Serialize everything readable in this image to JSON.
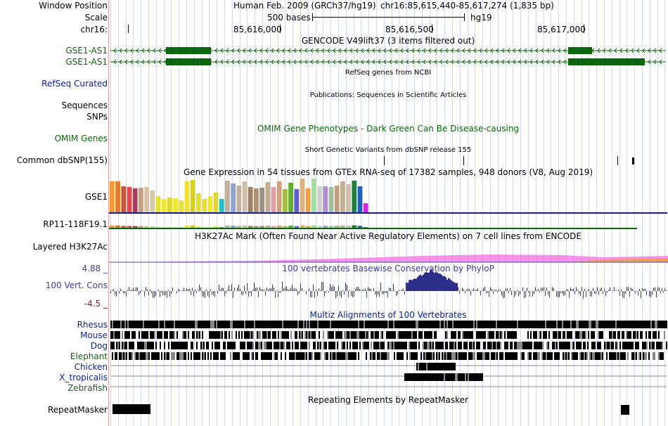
{
  "header": {
    "window_position_label": "Window Position",
    "assembly": "Human Feb. 2009 (GRCh37/hg19)",
    "position": "chr16:85,615,440-85,617,274 (1,835 bp)",
    "scale_label": "Scale",
    "scale_value": "500 bases",
    "scale_db": "hg19",
    "chrom_label": "chr16:",
    "ruler_ticks": [
      "85,616,000",
      "85,616,500",
      "85,617,000"
    ]
  },
  "tracks": {
    "gencode": {
      "title": "GENCODE V49lift37 (3 items filtered out)",
      "items": [
        "GSE1-AS1",
        "GSE1-AS1"
      ],
      "color": "#0c640c"
    },
    "refseq": {
      "title": "RefSeq genes from NCBI",
      "label": "RefSeq Curated"
    },
    "publications": {
      "title": "Publications: Sequences in Scientific Articles",
      "label_line1": "Sequences",
      "label_line2": "SNPs"
    },
    "omim": {
      "title": "OMIM Gene Phenotypes - Dark Green Can Be Disease-causing",
      "label": "OMIM Genes"
    },
    "dbsnp": {
      "title": "Short Genetic Variants from dbSNP release 155",
      "label": "Common dbSNP(155)"
    },
    "gtex": {
      "title": "Gene Expression in 54 tissues from GTEx RNA-seq of 17382 samples, 948 donors (V8, Aug 2019)",
      "gene1": "GSE1",
      "gene2": "RP11-118F19.1"
    },
    "h3k27ac": {
      "title": "H3K27Ac Mark (Often Found Near Active Regulatory Elements) on 7 cell lines from ENCODE",
      "label": "Layered H3K27Ac"
    },
    "phylop": {
      "title": "100 vertebrates Basewise Conservation by PhyloP",
      "label": "100 Vert. Cons",
      "max": "4.88 _",
      "min": "-4.5 _"
    },
    "multiz": {
      "title": "Multiz Alignments of 100 Vertebrates",
      "species": [
        "Rhesus",
        "Mouse",
        "Dog",
        "Elephant",
        "Chicken",
        "X_tropicalis",
        "Zebrafish"
      ]
    },
    "repeatmasker": {
      "title": "Repeating Elements by RepeatMasker",
      "label": "RepeatMasker"
    }
  },
  "colors": {
    "grid": "#cfd9f3",
    "gene": "#0c640c",
    "phylop_pos": "#2d2d8a",
    "phylop_neg": "#8a2a2a"
  }
}
